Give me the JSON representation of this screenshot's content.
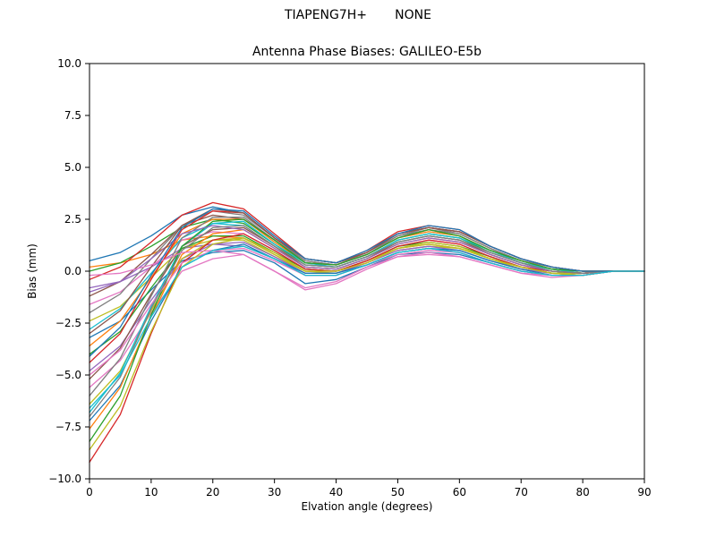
{
  "suptitle": "TIAPENG7H+       NONE",
  "colors": {
    "background": "#ffffff",
    "axes_line": "#000000",
    "text": "#000000"
  },
  "chart_data": {
    "type": "line",
    "title": "Antenna Phase Biases: GALILEO-E5b",
    "xlabel": "Elvation angle (degrees)",
    "ylabel": "Bias (mm)",
    "xlim": [
      0,
      90
    ],
    "ylim": [
      -10.0,
      10.0
    ],
    "grid": false,
    "legend": "none",
    "xticks": [
      0,
      10,
      20,
      30,
      40,
      50,
      60,
      70,
      80,
      90
    ],
    "xtick_labels": [
      "0",
      "10",
      "20",
      "30",
      "40",
      "50",
      "60",
      "70",
      "80",
      "90"
    ],
    "yticks": [
      10.0,
      7.5,
      5.0,
      2.5,
      0.0,
      -2.5,
      -5.0,
      -7.5,
      -10.0
    ],
    "ytick_labels": [
      "10.0",
      "7.5",
      "5.0",
      "2.5",
      "0.0",
      "−2.5",
      "−5.0",
      "−7.5",
      "−10.0"
    ],
    "x": [
      0,
      5,
      10,
      15,
      20,
      25,
      30,
      35,
      40,
      45,
      50,
      55,
      60,
      65,
      70,
      75,
      80,
      85,
      90
    ],
    "series": [
      {
        "color": "#1f77b4",
        "values": [
          0.5,
          0.9,
          1.7,
          2.7,
          3.1,
          2.8,
          1.6,
          0.6,
          0.4,
          0.9,
          1.8,
          2.1,
          1.9,
          1.2,
          0.6,
          0.2,
          0.0,
          0.0,
          0.0
        ]
      },
      {
        "color": "#ff7f0e",
        "values": [
          0.2,
          0.4,
          0.8,
          1.5,
          1.7,
          1.6,
          0.8,
          0.0,
          0.0,
          0.4,
          1.1,
          1.3,
          1.1,
          0.6,
          0.2,
          -0.1,
          -0.2,
          0.0,
          0.0
        ]
      },
      {
        "color": "#2ca02c",
        "values": [
          0.0,
          0.4,
          1.2,
          2.1,
          2.5,
          2.3,
          1.3,
          0.3,
          0.2,
          0.7,
          1.5,
          1.8,
          1.6,
          0.9,
          0.4,
          0.1,
          -0.1,
          0.0,
          0.0
        ]
      },
      {
        "color": "#d62728",
        "values": [
          -0.4,
          0.2,
          1.4,
          2.7,
          3.3,
          3.0,
          1.8,
          0.6,
          0.4,
          1.0,
          1.9,
          2.2,
          2.0,
          1.2,
          0.6,
          0.2,
          0.0,
          0.0,
          0.0
        ]
      },
      {
        "color": "#9467bd",
        "values": [
          -0.8,
          -0.5,
          0.2,
          1.1,
          1.3,
          1.2,
          0.6,
          -0.2,
          -0.2,
          0.3,
          0.9,
          1.1,
          0.9,
          0.4,
          0.0,
          -0.2,
          -0.2,
          0.0,
          0.0
        ]
      },
      {
        "color": "#8c564b",
        "values": [
          -1.2,
          -0.5,
          0.8,
          2.2,
          2.7,
          2.5,
          1.5,
          0.4,
          0.3,
          0.8,
          1.6,
          2.0,
          1.7,
          1.0,
          0.5,
          0.1,
          0.0,
          0.0,
          0.0
        ]
      },
      {
        "color": "#e377c2",
        "values": [
          -1.6,
          -1.0,
          0.2,
          1.5,
          1.9,
          1.8,
          1.0,
          0.1,
          0.0,
          0.5,
          1.2,
          1.5,
          1.3,
          0.7,
          0.2,
          0.0,
          -0.1,
          0.0,
          0.0
        ]
      },
      {
        "color": "#7f7f7f",
        "values": [
          -2.0,
          -1.1,
          0.6,
          2.2,
          2.9,
          2.7,
          1.6,
          0.5,
          0.3,
          0.9,
          1.7,
          2.1,
          1.8,
          1.1,
          0.5,
          0.2,
          0.0,
          0.0,
          0.0
        ]
      },
      {
        "color": "#bcbd22",
        "values": [
          -2.4,
          -1.7,
          -0.3,
          1.1,
          1.5,
          1.5,
          0.7,
          0.0,
          -0.1,
          0.4,
          1.0,
          1.2,
          1.1,
          0.6,
          0.1,
          -0.1,
          -0.2,
          0.0,
          0.0
        ]
      },
      {
        "color": "#17becf",
        "values": [
          -2.8,
          -1.8,
          -0.1,
          1.6,
          2.3,
          2.2,
          1.2,
          0.3,
          0.2,
          0.7,
          1.4,
          1.7,
          1.5,
          0.9,
          0.4,
          0.0,
          -0.1,
          0.0,
          0.0
        ]
      },
      {
        "color": "#1f77b4",
        "values": [
          -3.2,
          -2.4,
          -0.9,
          0.5,
          0.9,
          1.0,
          0.4,
          -0.6,
          -0.4,
          0.2,
          0.8,
          0.9,
          0.8,
          0.4,
          0.0,
          -0.2,
          -0.2,
          0.0,
          0.0
        ]
      },
      {
        "color": "#ff7f0e",
        "values": [
          -3.6,
          -2.4,
          -0.3,
          1.8,
          2.5,
          2.5,
          1.4,
          0.4,
          0.3,
          0.8,
          1.6,
          1.9,
          1.7,
          1.0,
          0.5,
          0.1,
          -0.1,
          0.0,
          0.0
        ]
      },
      {
        "color": "#2ca02c",
        "values": [
          -4.0,
          -2.9,
          -0.8,
          1.1,
          1.7,
          1.7,
          0.9,
          0.1,
          0.0,
          0.5,
          1.2,
          1.4,
          1.2,
          0.7,
          0.2,
          -0.1,
          -0.1,
          0.0,
          0.0
        ]
      },
      {
        "color": "#d62728",
        "values": [
          -4.4,
          -3.0,
          -0.4,
          2.0,
          2.9,
          2.8,
          1.6,
          0.6,
          0.4,
          0.9,
          1.8,
          2.1,
          1.9,
          1.2,
          0.6,
          0.2,
          0.0,
          0.0,
          0.0
        ]
      },
      {
        "color": "#9467bd",
        "values": [
          -4.8,
          -3.6,
          -1.4,
          0.6,
          1.3,
          1.4,
          0.7,
          -0.1,
          -0.1,
          0.4,
          1.0,
          1.2,
          1.0,
          0.5,
          0.1,
          -0.1,
          -0.2,
          0.0,
          0.0
        ]
      },
      {
        "color": "#8c564b",
        "values": [
          -5.2,
          -3.7,
          -1.1,
          1.2,
          2.0,
          2.1,
          1.2,
          0.2,
          0.1,
          0.6,
          1.4,
          1.7,
          1.5,
          0.8,
          0.3,
          0.0,
          -0.1,
          0.0,
          0.0
        ]
      },
      {
        "color": "#e377c2",
        "values": [
          -5.6,
          -4.3,
          -2.0,
          0.0,
          0.6,
          0.8,
          0.0,
          -0.9,
          -0.6,
          0.1,
          0.7,
          0.8,
          0.7,
          0.3,
          -0.1,
          -0.3,
          -0.2,
          0.0,
          0.0
        ]
      },
      {
        "color": "#7f7f7f",
        "values": [
          -6.0,
          -4.2,
          -1.2,
          1.6,
          2.6,
          2.6,
          1.5,
          0.5,
          0.3,
          0.8,
          1.7,
          2.0,
          1.8,
          1.1,
          0.5,
          0.1,
          0.0,
          0.0,
          0.0
        ]
      },
      {
        "color": "#bcbd22",
        "values": [
          -6.4,
          -4.8,
          -1.9,
          0.6,
          1.5,
          1.6,
          0.9,
          0.0,
          0.0,
          0.5,
          1.1,
          1.4,
          1.2,
          0.6,
          0.2,
          -0.1,
          -0.1,
          0.0,
          0.0
        ]
      },
      {
        "color": "#17becf",
        "values": [
          -6.8,
          -4.9,
          -1.7,
          1.2,
          2.3,
          2.4,
          1.3,
          0.4,
          0.2,
          0.7,
          1.5,
          1.8,
          1.6,
          1.0,
          0.4,
          0.1,
          -0.1,
          0.0,
          0.0
        ]
      },
      {
        "color": "#1f77b4",
        "values": [
          -7.2,
          -5.5,
          -2.4,
          0.2,
          1.0,
          1.3,
          0.6,
          -0.1,
          -0.1,
          0.3,
          0.9,
          1.1,
          1.0,
          0.5,
          0.1,
          -0.2,
          -0.2,
          0.0,
          0.0
        ]
      },
      {
        "color": "#ff7f0e",
        "values": [
          -7.6,
          -5.6,
          -2.2,
          0.8,
          1.8,
          2.0,
          1.1,
          0.2,
          0.1,
          0.6,
          1.3,
          1.6,
          1.4,
          0.8,
          0.3,
          0.0,
          -0.1,
          0.0,
          0.0
        ]
      },
      {
        "color": "#2ca02c",
        "values": [
          -8.2,
          -6.0,
          -2.1,
          1.2,
          2.4,
          2.5,
          1.5,
          0.4,
          0.3,
          0.8,
          1.6,
          2.0,
          1.7,
          1.0,
          0.5,
          0.1,
          0.0,
          0.0,
          0.0
        ]
      },
      {
        "color": "#d62728",
        "values": [
          -9.2,
          -6.9,
          -3.0,
          0.4,
          1.5,
          1.8,
          1.0,
          0.1,
          0.0,
          0.5,
          1.2,
          1.5,
          1.3,
          0.7,
          0.2,
          0.0,
          -0.1,
          0.0,
          0.0
        ]
      },
      {
        "color": "#9467bd",
        "values": [
          -1.0,
          -0.5,
          0.6,
          1.8,
          2.2,
          2.0,
          1.1,
          0.2,
          0.1,
          0.6,
          1.3,
          1.6,
          1.4,
          0.8,
          0.3,
          0.0,
          -0.1,
          0.0,
          0.0
        ]
      },
      {
        "color": "#8c564b",
        "values": [
          -3.0,
          -1.9,
          0.2,
          2.2,
          3.0,
          2.8,
          1.6,
          0.6,
          0.4,
          0.9,
          1.8,
          2.1,
          1.9,
          1.2,
          0.6,
          0.2,
          0.0,
          0.0,
          0.0
        ]
      },
      {
        "color": "#e377c2",
        "values": [
          -5.0,
          -3.8,
          -1.6,
          0.4,
          1.0,
          1.1,
          0.5,
          -0.2,
          -0.2,
          0.3,
          0.8,
          1.0,
          0.9,
          0.4,
          0.0,
          -0.2,
          -0.2,
          0.0,
          0.0
        ]
      },
      {
        "color": "#7f7f7f",
        "values": [
          -7.0,
          -5.1,
          -1.8,
          1.0,
          2.1,
          2.2,
          1.2,
          0.3,
          0.2,
          0.7,
          1.4,
          1.7,
          1.5,
          0.9,
          0.4,
          0.0,
          -0.1,
          0.0,
          0.0
        ]
      },
      {
        "color": "#bcbd22",
        "values": [
          -8.6,
          -6.5,
          -2.9,
          0.2,
          1.3,
          1.6,
          0.8,
          0.0,
          0.0,
          0.4,
          1.1,
          1.3,
          1.1,
          0.6,
          0.2,
          -0.1,
          -0.2,
          0.0,
          0.0
        ]
      },
      {
        "color": "#e377c2",
        "values": [
          -0.2,
          -0.1,
          0.3,
          0.9,
          1.0,
          0.8,
          0.0,
          -0.8,
          -0.5,
          0.2,
          0.7,
          0.9,
          0.7,
          0.3,
          -0.1,
          -0.2,
          -0.2,
          0.0,
          0.0
        ]
      },
      {
        "color": "#1f77b4",
        "values": [
          -4.1,
          -2.7,
          -0.2,
          2.1,
          3.0,
          2.9,
          1.7,
          0.6,
          0.4,
          1.0,
          1.8,
          2.2,
          2.0,
          1.2,
          0.6,
          0.2,
          0.0,
          0.0,
          0.0
        ]
      },
      {
        "color": "#17becf",
        "values": [
          -6.6,
          -5.0,
          -2.2,
          0.2,
          1.0,
          1.2,
          0.6,
          -0.2,
          -0.2,
          0.3,
          0.9,
          1.1,
          0.9,
          0.4,
          0.0,
          -0.2,
          -0.2,
          0.0,
          0.0
        ]
      }
    ]
  }
}
